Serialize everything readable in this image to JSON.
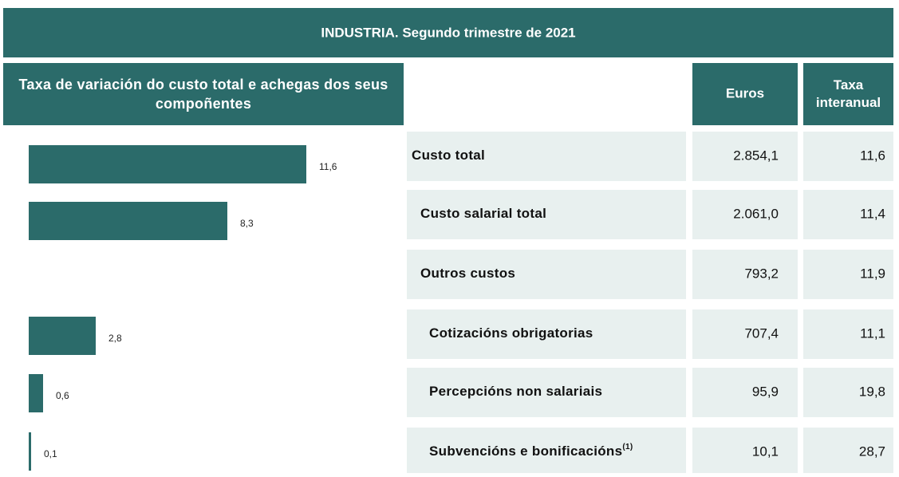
{
  "header": {
    "title": "INDUSTRIA. Segundo trimestre de 2021"
  },
  "chart_data": {
    "type": "bar",
    "title": "Taxa de variación do custo total e achegas dos seus compoñentes",
    "categories": [
      "Custo total",
      "Custo salarial total",
      "Outros custos",
      "Cotizacións obrigatorias",
      "Percepcións non salariais",
      "Subvencións e bonificacións"
    ],
    "values": [
      11.6,
      8.3,
      null,
      2.8,
      0.6,
      0.1
    ],
    "value_labels": [
      "11,6",
      "8,3",
      null,
      "2,8",
      "0,6",
      "0,1"
    ],
    "color": "#2b6b6a"
  },
  "table": {
    "columns": [
      "Euros",
      "Taxa interanual"
    ],
    "rows": [
      {
        "label": "Custo total",
        "euros": "2.854,1",
        "rate": "11,6"
      },
      {
        "label": "Custo salarial total",
        "euros": "2.061,0",
        "rate": "11,4"
      },
      {
        "label": "Outros custos",
        "euros": "793,2",
        "rate": "11,9"
      },
      {
        "label": "Cotizacións obrigatorias",
        "euros": "707,4",
        "rate": "11,1"
      },
      {
        "label": "Percepcións non salariais",
        "euros": "95,9",
        "rate": "19,8"
      },
      {
        "label": "Subvencións e bonificacións",
        "note": "(1)",
        "euros": "10,1",
        "rate": "28,7"
      }
    ]
  }
}
